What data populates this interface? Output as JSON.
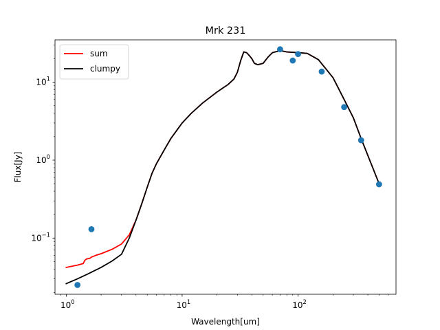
{
  "chart_data": {
    "type": "scatter",
    "title": "Mrk 231",
    "xlabel": "Wavelength[um]",
    "ylabel": "Flux[Jy]",
    "xscale": "log",
    "yscale": "log",
    "xlim": [
      0.8,
      700
    ],
    "ylim": [
      0.019,
      35
    ],
    "xticks": [
      {
        "base": "10",
        "exp": "0",
        "value": 1
      },
      {
        "base": "10",
        "exp": "1",
        "value": 10
      },
      {
        "base": "10",
        "exp": "2",
        "value": 100
      }
    ],
    "yticks": [
      {
        "base": "10",
        "exp": "−1",
        "value": 0.1
      },
      {
        "base": "10",
        "exp": "0",
        "value": 1
      },
      {
        "base": "10",
        "exp": "1",
        "value": 10
      }
    ],
    "legend": {
      "placement": "upper-left"
    },
    "series": [
      {
        "name": "sum",
        "kind": "line",
        "color": "#ff0000",
        "x": [
          1.0,
          1.25,
          1.4,
          1.45,
          1.5,
          1.6,
          1.65,
          1.8,
          2.0,
          2.5,
          3.0,
          3.5,
          4.0,
          4.5,
          5.0,
          5.5,
          6.0,
          7.0,
          8.0,
          10.0,
          12.0,
          15.0,
          20.0,
          25.0,
          28.0,
          30.0,
          32.0,
          34.0,
          36.0,
          38.0,
          40.0,
          42.0,
          45.0,
          50.0,
          55.0,
          60.0,
          70.0,
          80.0,
          100.0,
          120.0,
          150.0,
          200.0,
          250.0,
          300.0,
          350.0,
          400.0,
          500.0
        ],
        "y": [
          0.042,
          0.045,
          0.047,
          0.052,
          0.054,
          0.055,
          0.057,
          0.06,
          0.063,
          0.072,
          0.084,
          0.11,
          0.17,
          0.28,
          0.45,
          0.68,
          0.9,
          1.35,
          1.9,
          3.0,
          4.0,
          5.4,
          7.5,
          9.4,
          11.0,
          13.5,
          19.0,
          24.5,
          24.0,
          22.0,
          20.0,
          17.5,
          16.8,
          17.5,
          21.0,
          24.0,
          25.5,
          24.5,
          24.0,
          23.5,
          19.5,
          11.5,
          6.0,
          3.5,
          1.9,
          1.15,
          0.5
        ]
      },
      {
        "name": "clumpy",
        "kind": "line",
        "color": "#000000",
        "x": [
          1.0,
          1.25,
          1.5,
          2.0,
          2.5,
          3.0,
          3.5,
          4.0,
          4.5,
          5.0,
          5.5,
          6.0,
          7.0,
          8.0,
          10.0,
          12.0,
          15.0,
          20.0,
          25.0,
          28.0,
          30.0,
          32.0,
          34.0,
          36.0,
          38.0,
          40.0,
          42.0,
          45.0,
          50.0,
          55.0,
          60.0,
          70.0,
          80.0,
          100.0,
          120.0,
          150.0,
          200.0,
          250.0,
          300.0,
          350.0,
          400.0,
          500.0
        ],
        "y": [
          0.026,
          0.03,
          0.034,
          0.042,
          0.051,
          0.062,
          0.1,
          0.17,
          0.28,
          0.45,
          0.68,
          0.9,
          1.35,
          1.9,
          3.0,
          4.0,
          5.4,
          7.5,
          9.4,
          11.0,
          13.5,
          19.0,
          24.5,
          24.0,
          22.0,
          20.0,
          17.5,
          16.8,
          17.5,
          21.0,
          24.0,
          25.5,
          24.5,
          24.0,
          23.5,
          19.5,
          11.5,
          6.0,
          3.5,
          1.9,
          1.15,
          0.5
        ]
      },
      {
        "kind": "points",
        "color": "#1f77b4",
        "x": [
          1.25,
          1.65,
          70.0,
          90.0,
          100.0,
          160.0,
          250.0,
          350.0,
          500.0
        ],
        "y": [
          0.025,
          0.13,
          26.5,
          19.0,
          23.0,
          13.7,
          4.8,
          1.8,
          0.49
        ]
      }
    ]
  }
}
